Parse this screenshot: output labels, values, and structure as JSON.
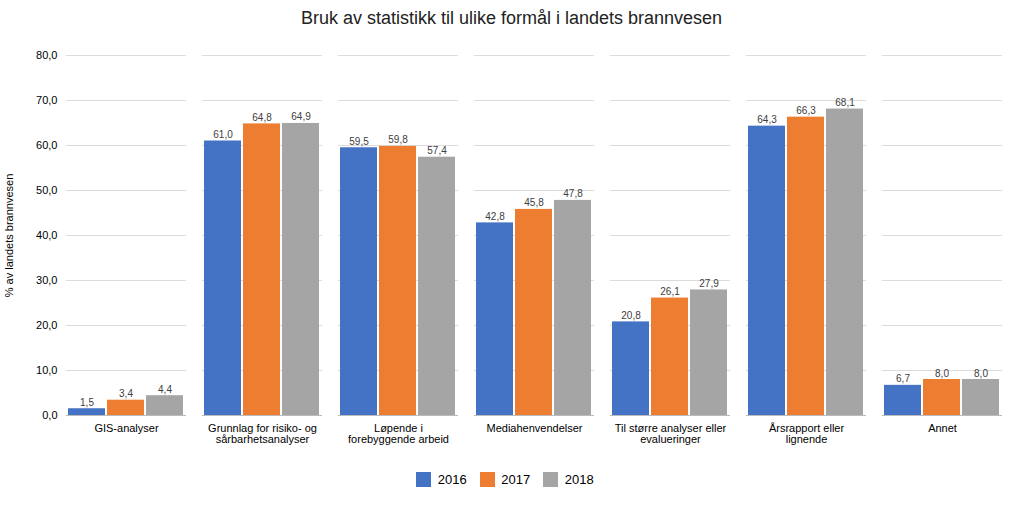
{
  "chart_data": {
    "type": "bar",
    "title": "Bruk av statistikk til ulike formål i landets brannvesen",
    "ylabel": "% av landets brannvesen",
    "categories": [
      "GIS-analyser",
      "Grunnlag for risiko- og\nsårbarhetsanalyser",
      "Løpende i\nforebyggende arbeid",
      "Mediahenvendelser",
      "Til større analyser eller\nevalueringer",
      "Årsrapport eller\nlignende",
      "Annet"
    ],
    "series": [
      {
        "name": "2016",
        "color": "#4472C4",
        "values": [
          1.5,
          61.0,
          59.5,
          42.8,
          20.8,
          64.3,
          6.7
        ],
        "value_labels": [
          "1,5",
          "61,0",
          "59,5",
          "42,8",
          "20,8",
          "64,3",
          "6,7"
        ]
      },
      {
        "name": "2017",
        "color": "#ED7D31",
        "values": [
          3.4,
          64.8,
          59.8,
          45.8,
          26.1,
          66.3,
          8.0
        ],
        "value_labels": [
          "3,4",
          "64,8",
          "59,8",
          "45,8",
          "26,1",
          "66,3",
          "8,0"
        ]
      },
      {
        "name": "2018",
        "color": "#A5A5A5",
        "values": [
          4.4,
          64.9,
          57.4,
          47.8,
          27.9,
          68.1,
          8.0
        ],
        "value_labels": [
          "4,4",
          "64,9",
          "57,4",
          "47,8",
          "27,9",
          "68,1",
          "8,0"
        ]
      }
    ],
    "ylim": [
      0,
      80
    ],
    "yticks": [
      {
        "value": 0,
        "label": "0,0"
      },
      {
        "value": 10,
        "label": "10,0"
      },
      {
        "value": 20,
        "label": "20,0"
      },
      {
        "value": 30,
        "label": "30,0"
      },
      {
        "value": 40,
        "label": "40,0"
      },
      {
        "value": 50,
        "label": "50,0"
      },
      {
        "value": 60,
        "label": "60,0"
      },
      {
        "value": 70,
        "label": "70,0"
      },
      {
        "value": 80,
        "label": "80,0"
      }
    ],
    "grid": true,
    "data_labels": true,
    "legend": "bottom"
  }
}
